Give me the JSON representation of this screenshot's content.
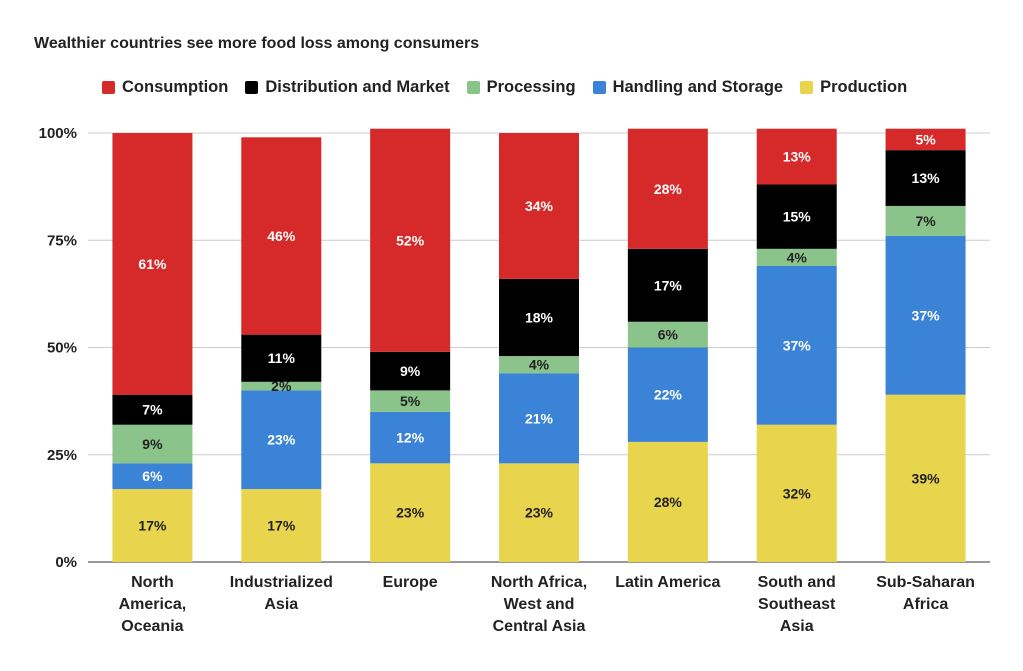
{
  "chart_data": {
    "type": "bar",
    "stacked": true,
    "title": "Wealthier countries see more food loss among consumers",
    "legend_position": "top",
    "grid": true,
    "ylim": [
      0,
      100
    ],
    "y_ticks": [
      "0%",
      "25%",
      "50%",
      "75%",
      "100%"
    ],
    "y_tick_values": [
      0,
      25,
      50,
      75,
      100
    ],
    "categories": [
      [
        "North",
        "America,",
        "Oceania"
      ],
      [
        "Industrialized",
        "Asia"
      ],
      [
        "Europe"
      ],
      [
        "North Africa,",
        "West and",
        "Central Asia"
      ],
      [
        "Latin America"
      ],
      [
        "South and",
        "Southeast",
        "Asia"
      ],
      [
        "Sub-Saharan",
        "Africa"
      ]
    ],
    "series": [
      {
        "name": "Production",
        "color": "#e8d44d",
        "label_color": "#222222",
        "values": [
          17,
          17,
          23,
          23,
          28,
          32,
          39
        ]
      },
      {
        "name": "Handling and Storage",
        "color": "#3a83d6",
        "label_color": "#ffffff",
        "values": [
          6,
          23,
          12,
          21,
          22,
          37,
          37
        ]
      },
      {
        "name": "Processing",
        "color": "#8bc48a",
        "label_color": "#222222",
        "values": [
          9,
          2,
          5,
          4,
          6,
          4,
          7
        ]
      },
      {
        "name": "Distribution and Market",
        "color": "#000000",
        "label_color": "#ffffff",
        "values": [
          7,
          11,
          9,
          18,
          17,
          15,
          13
        ]
      },
      {
        "name": "Consumption",
        "color": "#d62a2a",
        "label_color": "#ffffff",
        "values": [
          61,
          46,
          52,
          34,
          28,
          13,
          5
        ]
      }
    ],
    "legend_order": [
      "Consumption",
      "Distribution and Market",
      "Processing",
      "Handling and Storage",
      "Production"
    ]
  }
}
